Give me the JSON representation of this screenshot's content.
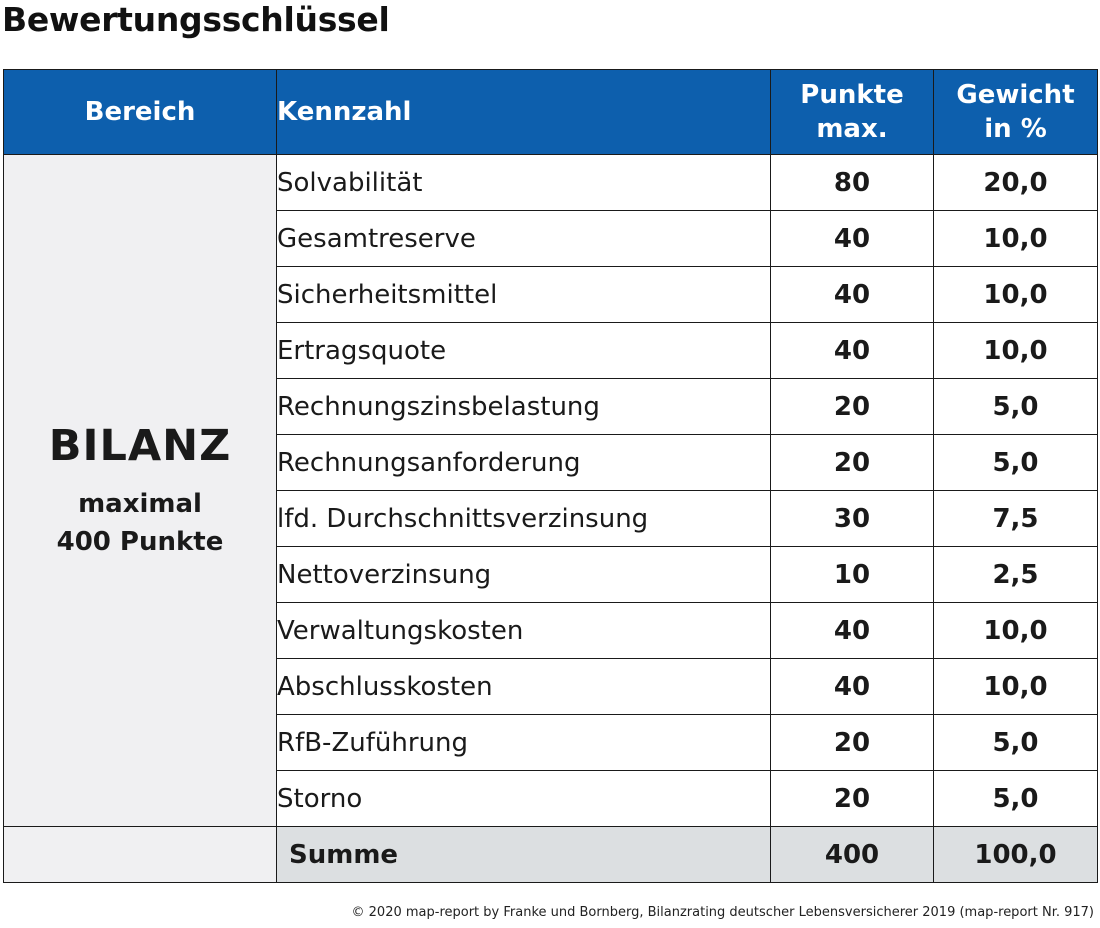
{
  "title": "Bewertungsschlüssel",
  "table": {
    "headers": {
      "bereich": "Bereich",
      "kennzahl": "Kennzahl",
      "punkte_line1": "Punkte",
      "punkte_line2": "max.",
      "gewicht_line1": "Gewicht",
      "gewicht_line2": "in %"
    },
    "bereich": {
      "name": "BILANZ",
      "line1": "maximal",
      "line2": "400 Punkte"
    },
    "rows": [
      {
        "kennzahl": "Solvabilität",
        "punkte": "80",
        "gewicht": "20,0"
      },
      {
        "kennzahl": "Gesamtreserve",
        "punkte": "40",
        "gewicht": "10,0"
      },
      {
        "kennzahl": "Sicherheitsmittel",
        "punkte": "40",
        "gewicht": "10,0"
      },
      {
        "kennzahl": "Ertragsquote",
        "punkte": "40",
        "gewicht": "10,0"
      },
      {
        "kennzahl": "Rechnungszinsbelastung",
        "punkte": "20",
        "gewicht": "5,0"
      },
      {
        "kennzahl": "Rechnungsanforderung",
        "punkte": "20",
        "gewicht": "5,0"
      },
      {
        "kennzahl": "lfd. Durchschnittsverzinsung",
        "punkte": "30",
        "gewicht": "7,5"
      },
      {
        "kennzahl": "Nettoverzinsung",
        "punkte": "10",
        "gewicht": "2,5"
      },
      {
        "kennzahl": "Verwaltungskosten",
        "punkte": "40",
        "gewicht": "10,0"
      },
      {
        "kennzahl": "Abschlusskosten",
        "punkte": "40",
        "gewicht": "10,0"
      },
      {
        "kennzahl": "RfB-Zuführung",
        "punkte": "20",
        "gewicht": "5,0"
      },
      {
        "kennzahl": "Storno",
        "punkte": "20",
        "gewicht": "5,0"
      }
    ],
    "sum": {
      "label": "Summe",
      "punkte": "400",
      "gewicht": "100,0"
    }
  },
  "footer": "© 2020 map-report by Franke und Bornberg, Bilanzrating deutscher Lebensversicherer 2019  (map-report Nr. 917)",
  "colors": {
    "header_bg": "#0d5fad",
    "bereich_bg": "#f0f0f2",
    "sum_bg": "#dcdfe1"
  }
}
